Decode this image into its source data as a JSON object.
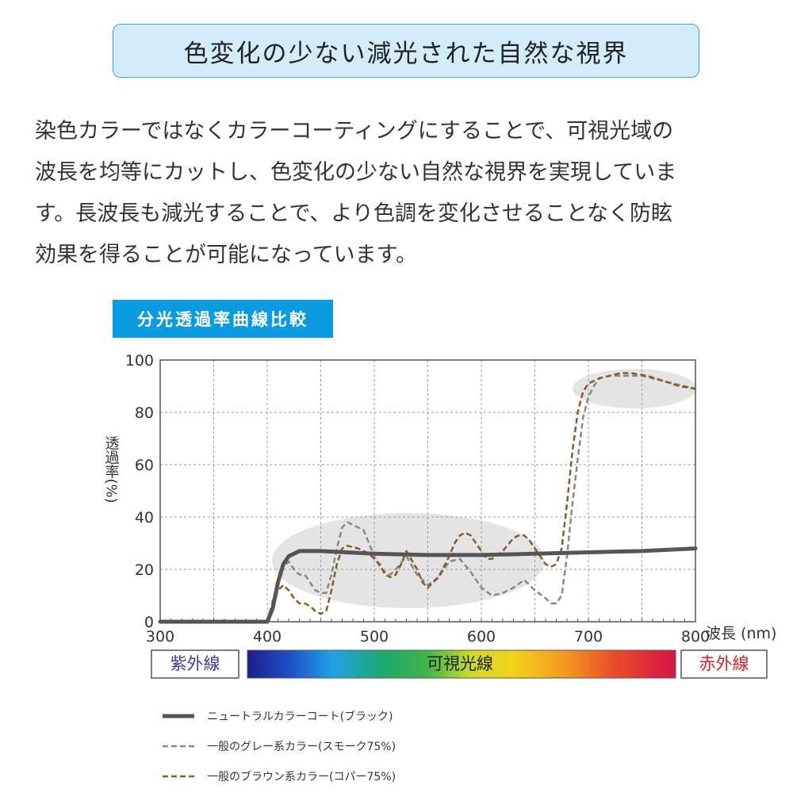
{
  "header": {
    "title": "色変化の少ない減光された自然な視界"
  },
  "body": {
    "lines": [
      "染色カラーではなくカラーコーティングにすることで、可視光域の",
      "波長を均等にカットし、色変化の少ない自然な視界を実現していま",
      "す。長波長も減光することで、より色調を変化させることなく防眩",
      "効果を得ることが可能になっています。"
    ]
  },
  "chart_label": "分光透過率曲線比較",
  "chart_data": {
    "type": "line",
    "title": "分光透過率曲線比較",
    "xlabel": "波長 (nm)",
    "ylabel": "透過率(%)",
    "xlim": [
      300,
      800
    ],
    "ylim": [
      0,
      100
    ],
    "x_ticks": [
      "300",
      "400",
      "500",
      "600",
      "700",
      "800"
    ],
    "y_ticks": [
      "0",
      "20",
      "40",
      "60",
      "80",
      "100"
    ],
    "grid": true,
    "legend_position": "bottom",
    "bands": {
      "uv": "紫外線",
      "visible": "可視光線",
      "ir": "赤外線"
    },
    "series": [
      {
        "name": "ニュートラルカラーコート(ブラック)",
        "style": "solid",
        "color": "#555555",
        "points": [
          [
            300,
            0
          ],
          [
            400,
            0
          ],
          [
            405,
            5
          ],
          [
            410,
            15
          ],
          [
            415,
            22
          ],
          [
            420,
            25
          ],
          [
            430,
            27
          ],
          [
            450,
            27
          ],
          [
            500,
            26
          ],
          [
            550,
            25.5
          ],
          [
            600,
            25.5
          ],
          [
            650,
            26
          ],
          [
            700,
            26.5
          ],
          [
            750,
            27
          ],
          [
            800,
            28
          ]
        ]
      },
      {
        "name": "一般のグレー系カラー(スモーク75%)",
        "style": "dashed",
        "color": "#888888",
        "points": [
          [
            400,
            0
          ],
          [
            405,
            8
          ],
          [
            410,
            15
          ],
          [
            415,
            21
          ],
          [
            420,
            23
          ],
          [
            425,
            20
          ],
          [
            430,
            18
          ],
          [
            435,
            18
          ],
          [
            440,
            15
          ],
          [
            445,
            12
          ],
          [
            450,
            11
          ],
          [
            455,
            11
          ],
          [
            460,
            18
          ],
          [
            465,
            28
          ],
          [
            470,
            36
          ],
          [
            475,
            38
          ],
          [
            480,
            37
          ],
          [
            490,
            35
          ],
          [
            495,
            30
          ],
          [
            500,
            25
          ],
          [
            505,
            21
          ],
          [
            510,
            19
          ],
          [
            515,
            18
          ],
          [
            520,
            20
          ],
          [
            530,
            25
          ],
          [
            540,
            18
          ],
          [
            550,
            14
          ],
          [
            560,
            17
          ],
          [
            570,
            23
          ],
          [
            580,
            24
          ],
          [
            590,
            19
          ],
          [
            600,
            13
          ],
          [
            610,
            10
          ],
          [
            620,
            11
          ],
          [
            630,
            13
          ],
          [
            640,
            16
          ],
          [
            650,
            12
          ],
          [
            660,
            9
          ],
          [
            665,
            7
          ],
          [
            670,
            7
          ],
          [
            675,
            10
          ],
          [
            680,
            25
          ],
          [
            685,
            45
          ],
          [
            690,
            62
          ],
          [
            695,
            78
          ],
          [
            700,
            86
          ],
          [
            705,
            90
          ],
          [
            710,
            93
          ],
          [
            720,
            94
          ],
          [
            735,
            94
          ],
          [
            750,
            94
          ],
          [
            760,
            93
          ],
          [
            770,
            92
          ],
          [
            780,
            91
          ],
          [
            800,
            89
          ]
        ]
      },
      {
        "name": "一般のブラウン系カラー(コパー75%)",
        "style": "dashed",
        "color": "#8b5a2b",
        "points": [
          [
            400,
            0
          ],
          [
            405,
            6
          ],
          [
            410,
            12
          ],
          [
            415,
            14
          ],
          [
            420,
            12
          ],
          [
            425,
            9
          ],
          [
            430,
            7
          ],
          [
            435,
            7
          ],
          [
            440,
            6
          ],
          [
            445,
            4
          ],
          [
            450,
            3
          ],
          [
            455,
            4
          ],
          [
            460,
            12
          ],
          [
            465,
            22
          ],
          [
            470,
            28
          ],
          [
            475,
            29
          ],
          [
            485,
            28
          ],
          [
            495,
            26
          ],
          [
            505,
            22
          ],
          [
            510,
            18
          ],
          [
            515,
            17
          ],
          [
            520,
            18
          ],
          [
            525,
            22
          ],
          [
            530,
            27
          ],
          [
            540,
            20
          ],
          [
            545,
            15
          ],
          [
            550,
            13
          ],
          [
            560,
            17
          ],
          [
            570,
            25
          ],
          [
            575,
            30
          ],
          [
            580,
            33
          ],
          [
            585,
            34
          ],
          [
            590,
            33
          ],
          [
            600,
            27
          ],
          [
            605,
            24
          ],
          [
            610,
            24
          ],
          [
            620,
            27
          ],
          [
            630,
            32
          ],
          [
            635,
            33
          ],
          [
            640,
            33
          ],
          [
            645,
            31
          ],
          [
            650,
            28
          ],
          [
            655,
            25
          ],
          [
            660,
            22
          ],
          [
            665,
            21
          ],
          [
            670,
            22
          ],
          [
            675,
            28
          ],
          [
            680,
            45
          ],
          [
            685,
            65
          ],
          [
            690,
            80
          ],
          [
            695,
            88
          ],
          [
            700,
            91
          ],
          [
            710,
            93
          ],
          [
            720,
            94
          ],
          [
            730,
            95
          ],
          [
            740,
            95
          ],
          [
            755,
            94
          ],
          [
            770,
            92
          ],
          [
            785,
            90
          ],
          [
            800,
            89
          ]
        ]
      }
    ]
  },
  "colors": {
    "title_bg": "#d2ecf9",
    "title_border": "#3aa6dd",
    "label_bg": "#0a9be0",
    "uv_text": "#3b3b9c",
    "ir_text": "#d4202f"
  }
}
